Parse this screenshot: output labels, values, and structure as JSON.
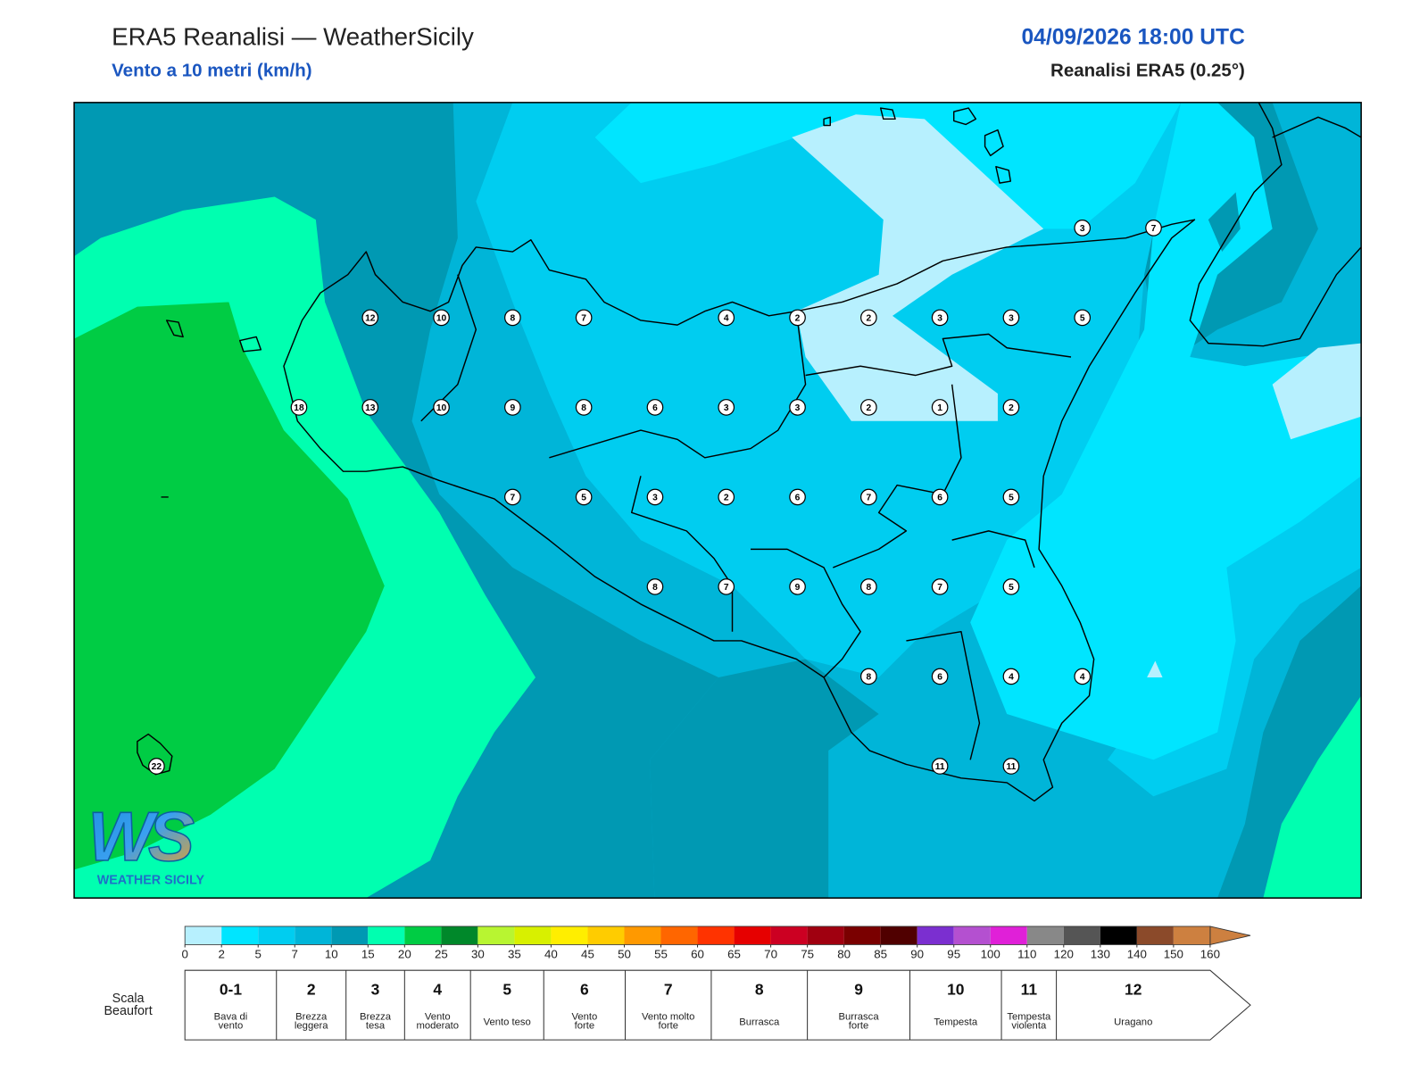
{
  "header": {
    "title": "ERA5 Reanalisi — WeatherSicily",
    "subtitle": "Vento a 10 metri (km/h)",
    "datetime": "04/09/2026 18:00 UTC",
    "source": "Reanalisi ERA5 (0.25°)"
  },
  "logo": {
    "mark": "WS",
    "name": "WEATHER SICILY"
  },
  "map": {
    "stations": [
      [
        null,
        null,
        null,
        null,
        null,
        null,
        null,
        null,
        null,
        null,
        null,
        null,
        null,
        3,
        7
      ],
      [
        null,
        null,
        null,
        12,
        10,
        8,
        7,
        null,
        4,
        2,
        2,
        3,
        3,
        5,
        null
      ],
      [
        null,
        null,
        18,
        13,
        10,
        9,
        8,
        6,
        3,
        3,
        2,
        1,
        2,
        null,
        null
      ],
      [
        null,
        null,
        null,
        null,
        null,
        7,
        5,
        3,
        2,
        6,
        7,
        6,
        5,
        null,
        null
      ],
      [
        null,
        null,
        null,
        null,
        null,
        null,
        null,
        8,
        7,
        9,
        8,
        7,
        5,
        null,
        null
      ],
      [
        null,
        null,
        null,
        null,
        null,
        null,
        null,
        null,
        null,
        null,
        8,
        6,
        4,
        4,
        null
      ],
      [
        22,
        null,
        null,
        null,
        null,
        null,
        null,
        null,
        null,
        null,
        null,
        11,
        11,
        null,
        null
      ]
    ]
  },
  "colorbar": {
    "ticks": [
      0,
      2,
      5,
      7,
      10,
      15,
      20,
      25,
      30,
      35,
      40,
      45,
      50,
      55,
      60,
      65,
      70,
      75,
      80,
      85,
      90,
      95,
      100,
      110,
      120,
      130,
      140,
      150,
      160
    ],
    "colors": [
      "#b7f0fe",
      "#00e5ff",
      "#00cdf0",
      "#00b5d8",
      "#0099b3",
      "#00ffb0",
      "#00cc44",
      "#00882a",
      "#b8f531",
      "#d8f000",
      "#ffee00",
      "#ffcc00",
      "#ff9900",
      "#ff6600",
      "#ff3300",
      "#e60000",
      "#cc0022",
      "#a00010",
      "#7a0000",
      "#500000",
      "#7b2fd0",
      "#b450d0",
      "#e020d8",
      "#888888",
      "#555555",
      "#000000",
      "#8b4a2a",
      "#cd8040"
    ]
  },
  "beaufort": {
    "label_lines": [
      "Scala",
      "Beaufort"
    ],
    "levels": [
      {
        "force": "0-1",
        "name_lines": [
          "Bava di",
          "vento"
        ]
      },
      {
        "force": 2,
        "name_lines": [
          "Brezza",
          "leggera"
        ]
      },
      {
        "force": 3,
        "name_lines": [
          "Brezza",
          "tesa"
        ]
      },
      {
        "force": 4,
        "name_lines": [
          "Vento",
          "moderato"
        ]
      },
      {
        "force": 5,
        "name_lines": [
          "Vento teso"
        ]
      },
      {
        "force": 6,
        "name_lines": [
          "Vento",
          "forte"
        ]
      },
      {
        "force": 7,
        "name_lines": [
          "Vento molto",
          "forte"
        ]
      },
      {
        "force": 8,
        "name_lines": [
          "Burrasca"
        ]
      },
      {
        "force": 9,
        "name_lines": [
          "Burrasca",
          "forte"
        ]
      },
      {
        "force": 10,
        "name_lines": [
          "Tempesta"
        ]
      },
      {
        "force": 11,
        "name_lines": [
          "Tempesta",
          "violenta"
        ]
      },
      {
        "force": 12,
        "name_lines": [
          "Uragano"
        ]
      }
    ]
  }
}
